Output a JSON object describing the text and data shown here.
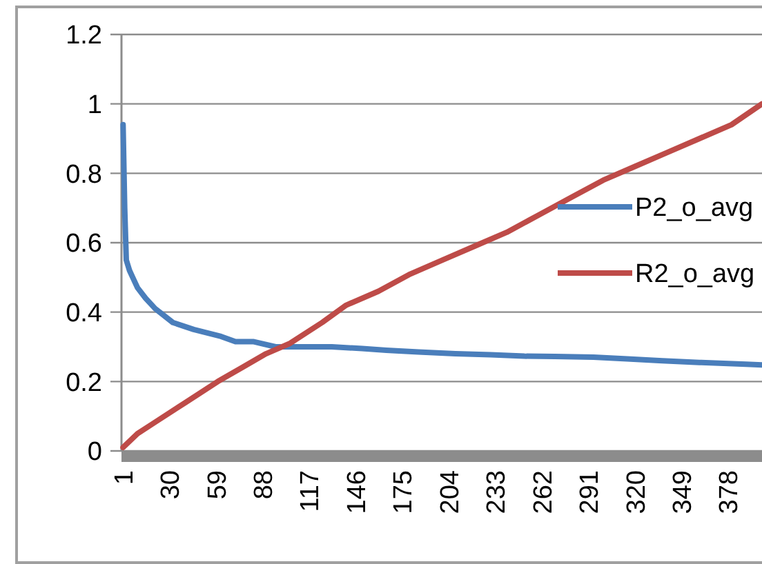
{
  "chart_data": {
    "type": "line",
    "x": [
      1,
      2,
      3,
      5,
      7,
      10,
      15,
      21,
      32,
      45,
      62,
      71,
      82,
      96,
      110,
      131,
      150,
      165,
      185,
      208,
      230,
      251,
      270,
      294,
      315,
      337,
      360,
      389,
      399
    ],
    "xlim": [
      0,
      399
    ],
    "xticks": [
      1,
      30,
      59,
      88,
      117,
      146,
      175,
      204,
      233,
      262,
      291,
      320,
      349,
      378
    ],
    "ylim": [
      0,
      1.2
    ],
    "yticks": [
      0,
      0.2,
      0.4,
      0.6,
      0.8,
      1,
      1.2
    ],
    "grid": "y",
    "legend": "right",
    "line_style": "solid",
    "marker": "none",
    "series": [
      {
        "name": "P2_o_avg",
        "color": "#4a7ebb",
        "values": [
          0.94,
          0.7,
          0.55,
          0.52,
          0.5,
          0.47,
          0.44,
          0.41,
          0.37,
          0.35,
          0.33,
          0.315,
          0.315,
          0.3,
          0.3,
          0.3,
          0.295,
          0.29,
          0.285,
          0.28,
          0.277,
          0.273,
          0.272,
          0.27,
          0.265,
          0.26,
          0.255,
          0.25,
          0.248
        ]
      },
      {
        "name": "R2_o_avg",
        "color": "#be4b48",
        "x": [
          1,
          10,
          20,
          40,
          60,
          75,
          90,
          105,
          125,
          140,
          160,
          180,
          200,
          220,
          240,
          260,
          280,
          300,
          320,
          340,
          360,
          380,
          399
        ],
        "values": [
          0.01,
          0.05,
          0.08,
          0.14,
          0.2,
          0.24,
          0.28,
          0.31,
          0.37,
          0.42,
          0.46,
          0.51,
          0.55,
          0.59,
          0.63,
          0.68,
          0.73,
          0.78,
          0.82,
          0.86,
          0.9,
          0.94,
          1.0
        ]
      }
    ]
  }
}
